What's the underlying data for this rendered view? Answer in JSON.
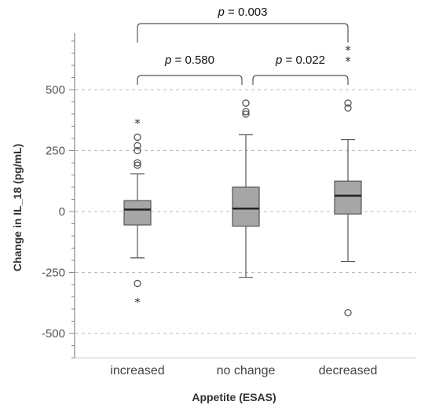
{
  "chart_data": {
    "type": "boxplot",
    "xlabel": "Appetite (ESAS)",
    "ylabel": "Change in IL_18 (pg/mL)",
    "ylim": [
      -600,
      720
    ],
    "yticks": [
      500,
      250,
      0,
      -250,
      -500
    ],
    "ytick_labels": [
      "500",
      "250",
      "0",
      "-250",
      "-500"
    ],
    "grid": "horizontal dashed at labeled ticks",
    "colors": {
      "box": "#a6a6a6",
      "box_edge": "#555555",
      "grid": "#bbbbbb",
      "axis": "#888888"
    },
    "categories": [
      "increased",
      "no change",
      "decreased"
    ],
    "boxes": [
      {
        "category": "increased",
        "whisker_low": -190,
        "q1": -55,
        "median": 8,
        "q3": 45,
        "whisker_high": 155,
        "outliers": [
          190,
          200,
          250,
          270,
          305,
          -295
        ],
        "extremes": [
          365,
          -370
        ]
      },
      {
        "category": "no change",
        "whisker_low": -270,
        "q1": -60,
        "median": 12,
        "q3": 100,
        "whisker_high": 315,
        "outliers": [
          400,
          410,
          445
        ],
        "extremes": []
      },
      {
        "category": "decreased",
        "whisker_low": -205,
        "q1": -10,
        "median": 65,
        "q3": 125,
        "whisker_high": 295,
        "outliers": [
          425,
          445,
          -415
        ],
        "extremes": [
          620,
          665
        ]
      }
    ],
    "comparisons": [
      {
        "from": "increased",
        "to": "no change",
        "p_prefix": "p",
        "p_value": "= 0.580",
        "level": 1
      },
      {
        "from": "no change",
        "to": "decreased",
        "p_prefix": "p",
        "p_value": "= 0.022",
        "level": 1
      },
      {
        "from": "increased",
        "to": "decreased",
        "p_prefix": "p",
        "p_value": "= 0.003",
        "level": 2
      }
    ]
  }
}
